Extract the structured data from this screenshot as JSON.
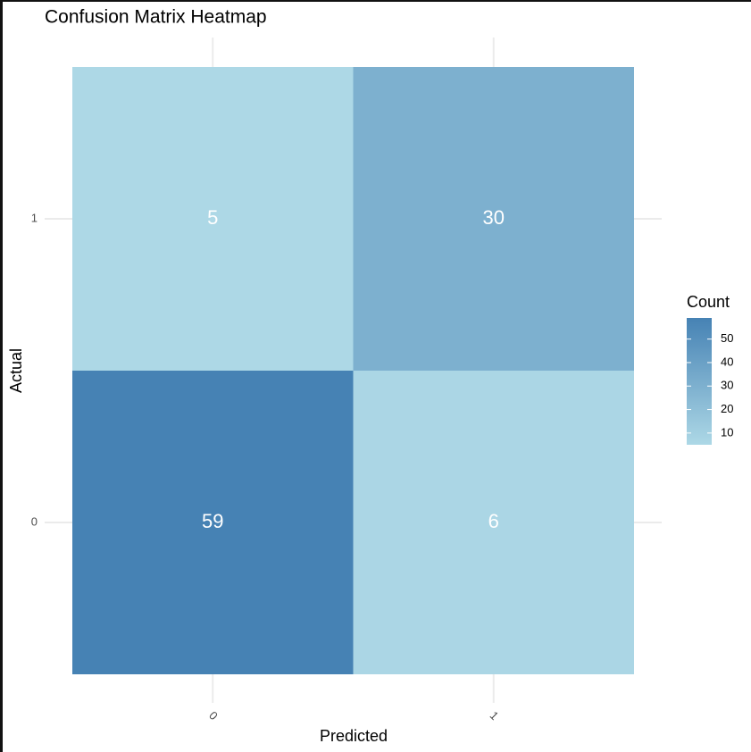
{
  "chart_data": {
    "type": "heatmap",
    "title": "Confusion Matrix Heatmap",
    "x_label": "Predicted",
    "y_label": "Actual",
    "x_categories": [
      "0",
      "1"
    ],
    "y_categories": [
      "0",
      "1"
    ],
    "values": [
      [
        59,
        6
      ],
      [
        5,
        30
      ]
    ],
    "colorbar": {
      "title": "Count",
      "lim": [
        5,
        59
      ],
      "ticks": [
        10,
        20,
        30,
        40,
        50
      ],
      "colors": [
        "#add8e6",
        "#4682b4"
      ]
    }
  }
}
